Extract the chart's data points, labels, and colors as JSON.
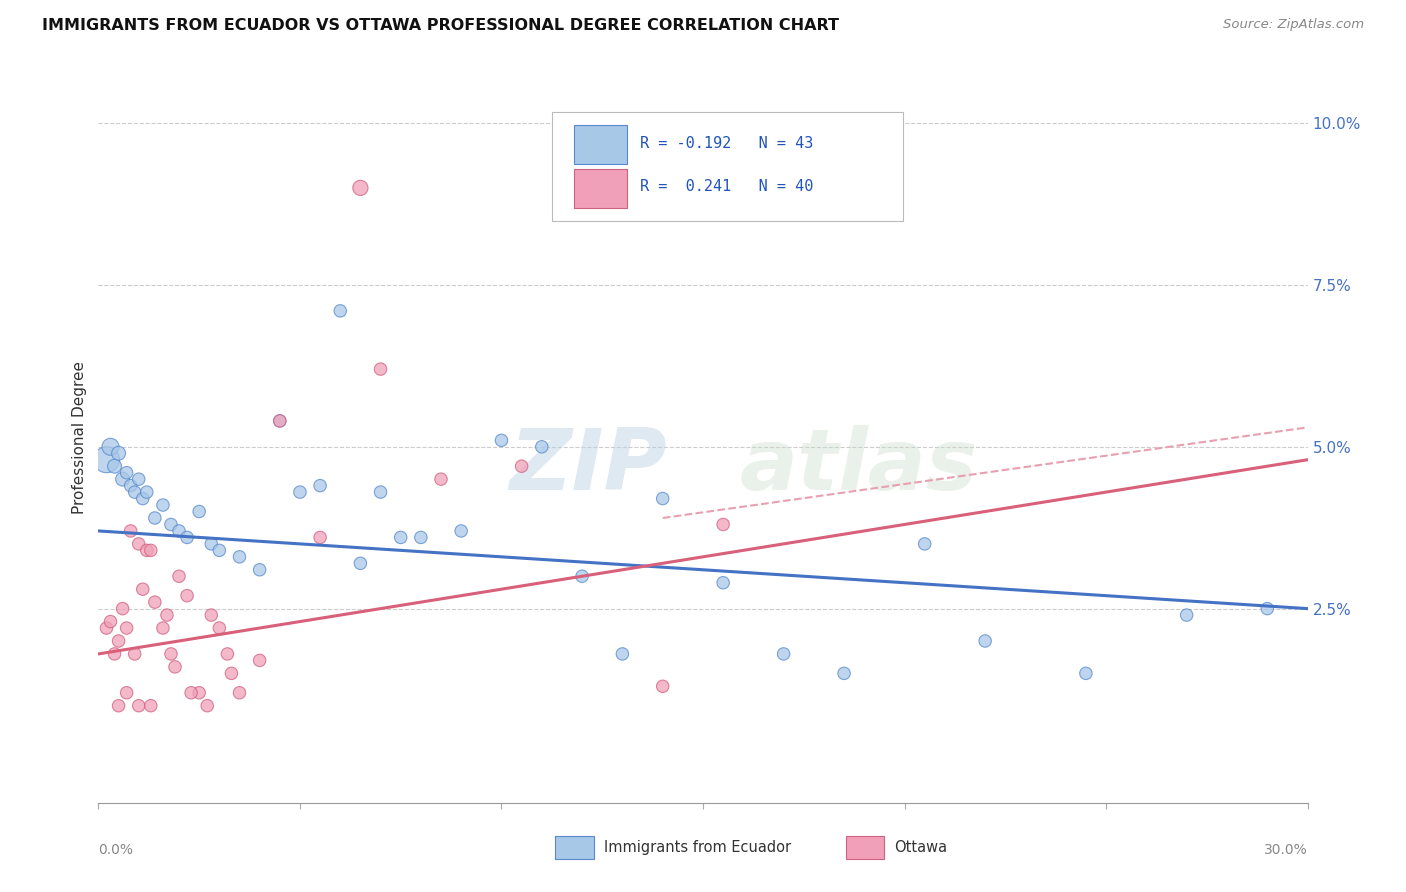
{
  "title": "IMMIGRANTS FROM ECUADOR VS OTTAWA PROFESSIONAL DEGREE CORRELATION CHART",
  "source": "Source: ZipAtlas.com",
  "ylabel": "Professional Degree",
  "right_ytick_vals": [
    2.5,
    5.0,
    7.5,
    10.0
  ],
  "right_ytick_labels": [
    "2.5%",
    "5.0%",
    "7.5%",
    "10.0%"
  ],
  "xmin": 0.0,
  "xmax": 30.0,
  "ymin": -0.5,
  "ymax": 10.8,
  "blue_color": "#a8c8e8",
  "blue_edge_color": "#5588cc",
  "pink_color": "#f0a0b8",
  "pink_edge_color": "#d06080",
  "blue_line_color": "#4472c4",
  "pink_line_color": "#d9607a",
  "pink_dash_color": "#e8a0b0",
  "watermark_color": "#c8d8e8",
  "blue_scatter_x": [
    0.2,
    0.3,
    0.4,
    0.5,
    0.6,
    0.7,
    0.8,
    0.9,
    1.0,
    1.1,
    1.2,
    1.4,
    1.6,
    1.8,
    2.0,
    2.2,
    2.5,
    2.8,
    3.0,
    3.5,
    4.0,
    4.5,
    5.0,
    5.5,
    6.0,
    6.5,
    7.0,
    7.5,
    8.0,
    9.0,
    10.0,
    11.0,
    12.0,
    13.0,
    14.0,
    15.5,
    17.0,
    18.5,
    20.5,
    22.0,
    24.5,
    27.0,
    29.0
  ],
  "blue_scatter_y": [
    4.8,
    5.0,
    4.7,
    4.9,
    4.5,
    4.6,
    4.4,
    4.3,
    4.5,
    4.2,
    4.3,
    3.9,
    4.1,
    3.8,
    3.7,
    3.6,
    4.0,
    3.5,
    3.4,
    3.3,
    3.1,
    5.4,
    4.3,
    4.4,
    7.1,
    3.2,
    4.3,
    3.6,
    3.6,
    3.7,
    5.1,
    5.0,
    3.0,
    1.8,
    4.2,
    2.9,
    1.8,
    1.5,
    3.5,
    2.0,
    1.5,
    2.4,
    2.5
  ],
  "blue_dot_sizes": [
    350,
    150,
    100,
    100,
    100,
    80,
    80,
    80,
    80,
    80,
    80,
    80,
    80,
    80,
    80,
    80,
    80,
    80,
    80,
    80,
    80,
    80,
    80,
    80,
    80,
    80,
    80,
    80,
    80,
    80,
    80,
    80,
    80,
    80,
    80,
    80,
    80,
    80,
    80,
    80,
    80,
    80,
    80
  ],
  "pink_scatter_x": [
    0.2,
    0.3,
    0.4,
    0.5,
    0.6,
    0.7,
    0.8,
    0.9,
    1.0,
    1.1,
    1.2,
    1.3,
    1.4,
    1.6,
    1.7,
    1.9,
    2.0,
    2.2,
    2.5,
    2.8,
    3.0,
    3.2,
    3.5,
    4.0,
    4.5,
    5.5,
    6.5,
    7.0,
    8.5,
    10.5,
    14.0,
    15.5,
    0.5,
    0.7,
    1.0,
    1.3,
    1.8,
    2.3,
    2.7,
    3.3
  ],
  "pink_scatter_y": [
    2.2,
    2.3,
    1.8,
    2.0,
    2.5,
    2.2,
    3.7,
    1.8,
    3.5,
    2.8,
    3.4,
    3.4,
    2.6,
    2.2,
    2.4,
    1.6,
    3.0,
    2.7,
    1.2,
    2.4,
    2.2,
    1.8,
    1.2,
    1.7,
    5.4,
    3.6,
    9.0,
    6.2,
    4.5,
    4.7,
    1.3,
    3.8,
    1.0,
    1.2,
    1.0,
    1.0,
    1.8,
    1.2,
    1.0,
    1.5
  ],
  "pink_dot_sizes": [
    80,
    80,
    80,
    80,
    80,
    80,
    80,
    80,
    80,
    80,
    80,
    80,
    80,
    80,
    80,
    80,
    80,
    80,
    80,
    80,
    80,
    80,
    80,
    80,
    80,
    80,
    120,
    80,
    80,
    80,
    80,
    80,
    80,
    80,
    80,
    80,
    80,
    80,
    80,
    80
  ],
  "blue_trend_x0": 0.0,
  "blue_trend_y0": 3.7,
  "blue_trend_x1": 30.0,
  "blue_trend_y1": 2.5,
  "pink_trend_x0": 0.0,
  "pink_trend_y0": 1.8,
  "pink_trend_x1": 30.0,
  "pink_trend_y1": 4.8,
  "pink_dash_x0": 14.0,
  "pink_dash_y0": 3.9,
  "pink_dash_x1": 30.0,
  "pink_dash_y1": 5.3
}
